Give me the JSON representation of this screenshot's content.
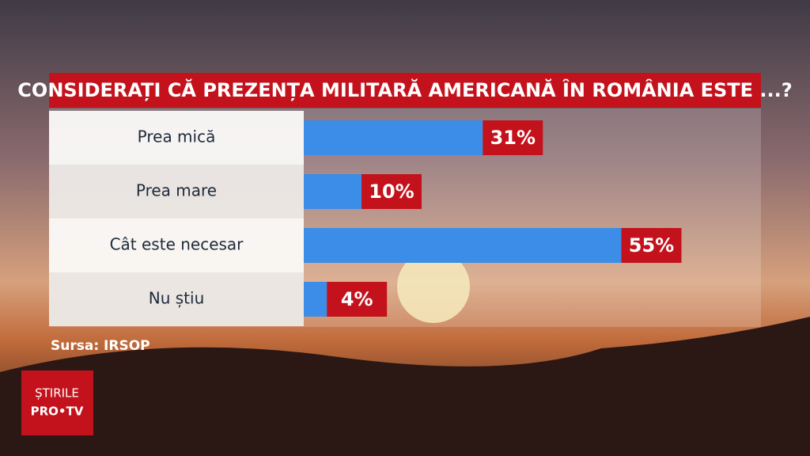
{
  "chart_data": {
    "type": "bar",
    "orientation": "horizontal",
    "title": "CONSIDERAȚI CĂ PREZENȚA MILITARĂ AMERICANĂ ÎN ROMÂNIA ESTE ...?",
    "categories": [
      "Prea mică",
      "Prea mare",
      "Cât este necesar",
      "Nu știu"
    ],
    "values": [
      31,
      10,
      55,
      4
    ],
    "value_labels": [
      "31%",
      "10%",
      "55%",
      "4%"
    ],
    "color": "#3b8de8",
    "label_color": "#c3121c",
    "source": "Sursa: IRSOP"
  },
  "logo": {
    "line1": "ȘTIRILE",
    "line2": "PRO•TV"
  }
}
